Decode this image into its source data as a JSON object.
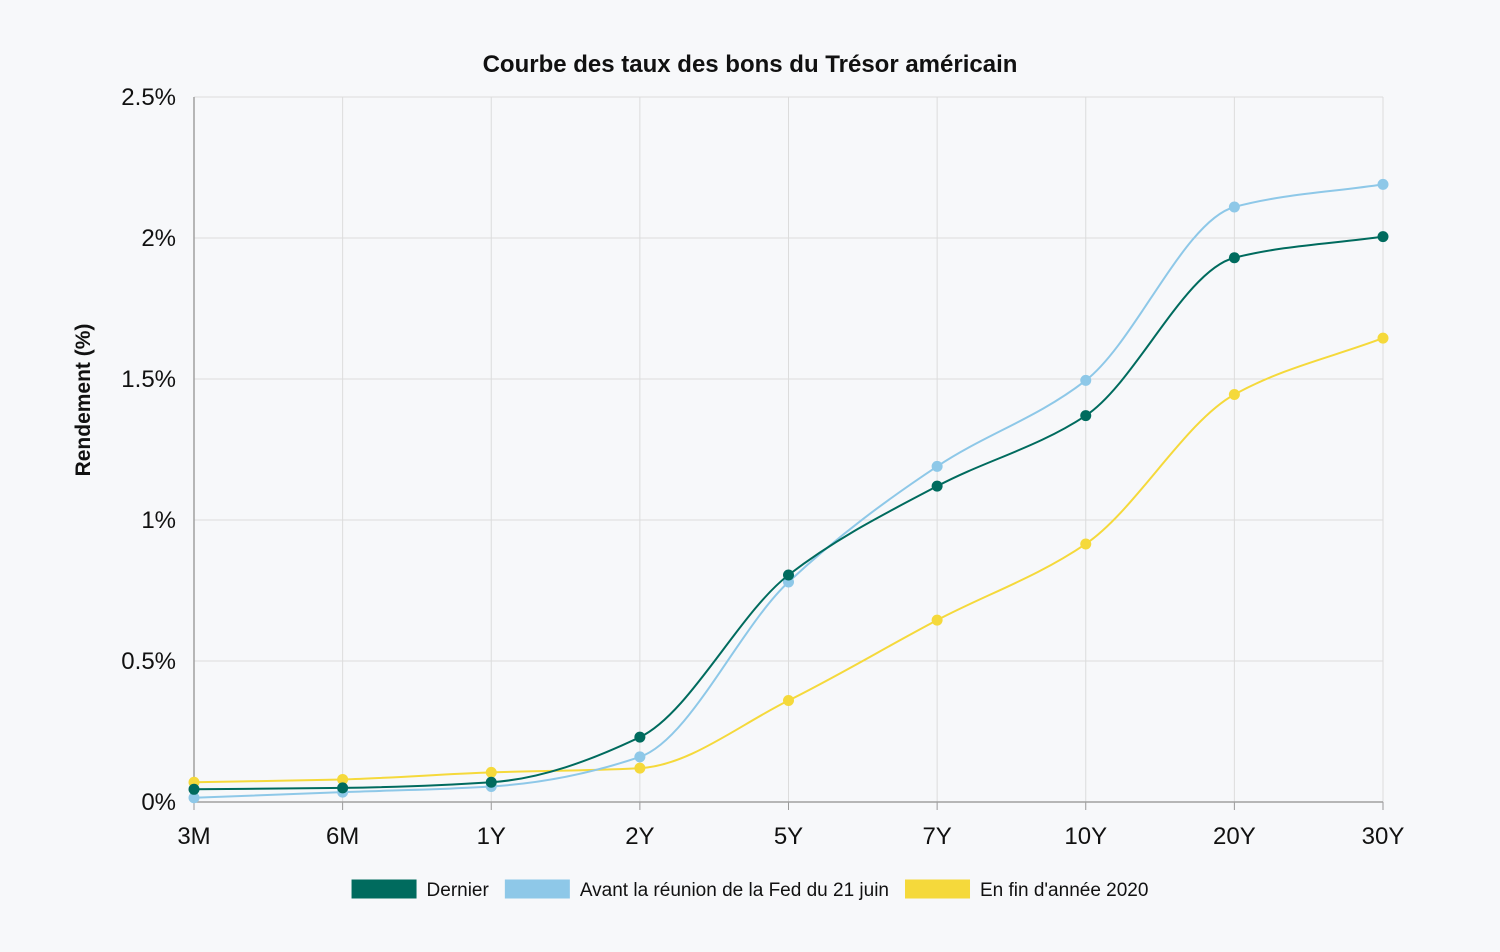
{
  "chart_data": {
    "type": "line",
    "title": "Courbe des taux des bons du Trésor américain",
    "xlabel": "",
    "ylabel": "Rendement (%)",
    "categories": [
      "3M",
      "6M",
      "1Y",
      "2Y",
      "5Y",
      "7Y",
      "10Y",
      "20Y",
      "30Y"
    ],
    "ylim": [
      0,
      2.5
    ],
    "yticks": [
      0,
      0.5,
      1,
      1.5,
      2,
      2.5
    ],
    "ytick_labels": [
      "0%",
      "0.5%",
      "1%",
      "1.5%",
      "2%",
      "2.5%"
    ],
    "grid": true,
    "legend_position": "bottom",
    "series": [
      {
        "name": "Dernier",
        "color": "#006b5e",
        "values": [
          0.045,
          0.05,
          0.07,
          0.23,
          0.805,
          1.12,
          1.37,
          1.93,
          2.005
        ]
      },
      {
        "name": "Avant la réunion de la Fed du 21 juin",
        "color": "#8ec8e8",
        "values": [
          0.015,
          0.035,
          0.055,
          0.16,
          0.78,
          1.19,
          1.495,
          2.11,
          2.19
        ]
      },
      {
        "name": "En fin d'année 2020",
        "color": "#f5d93b",
        "values": [
          0.07,
          0.08,
          0.105,
          0.12,
          0.36,
          0.645,
          0.915,
          1.445,
          1.645
        ]
      }
    ]
  }
}
